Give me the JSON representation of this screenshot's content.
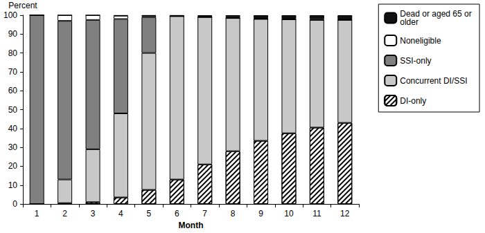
{
  "chart_data": {
    "type": "bar",
    "stacked": true,
    "x_label": "Month",
    "y_label": "Percent",
    "categories": [
      "1",
      "2",
      "3",
      "4",
      "5",
      "6",
      "7",
      "8",
      "9",
      "10",
      "11",
      "12"
    ],
    "ylim": [
      0,
      100
    ],
    "yticks": [
      0,
      10,
      20,
      30,
      40,
      50,
      60,
      70,
      80,
      90,
      100
    ],
    "grid": false,
    "legend": "upper right",
    "series": [
      {
        "name": "DI-only",
        "color": "#ffffff",
        "marker": "hatch",
        "values": [
          0,
          0.5,
          1,
          3.5,
          7.5,
          13,
          21,
          28,
          33.5,
          37.5,
          40.5,
          43
        ]
      },
      {
        "name": "Concurrent DI/SSI",
        "color": "#c8c8c8",
        "values": [
          0,
          12.5,
          28,
          44.5,
          72.5,
          86.5,
          78,
          70.5,
          64.5,
          60.3,
          57,
          54.5
        ]
      },
      {
        "name": "SSI-only",
        "color": "#808080",
        "values": [
          100,
          84,
          68.5,
          50,
          19,
          0,
          0,
          0,
          0,
          0,
          0,
          0
        ]
      },
      {
        "name": "Noneligible",
        "color": "#ffffff",
        "values": [
          0,
          3,
          2.5,
          1.7,
          0.7,
          0.2,
          0.3,
          0.5,
          0.5,
          0.4,
          0.5,
          0.3
        ]
      },
      {
        "name": "Dead or aged 65 or older",
        "color": "#111111",
        "values": [
          0,
          0,
          0,
          0.3,
          0.3,
          0.3,
          0.7,
          1,
          1.5,
          1.8,
          2,
          2.2
        ]
      }
    ]
  }
}
